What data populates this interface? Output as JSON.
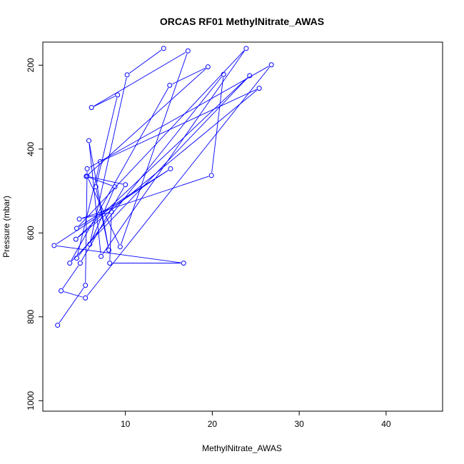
{
  "chart_data": {
    "type": "line",
    "title": "ORCAS RF01 MethylNitrate_AWAS",
    "xlabel": "MethylNitrate_AWAS",
    "ylabel": "Pressure (mbar)",
    "xlim": [
      0.5,
      46.5
    ],
    "ylim": [
      1025,
      145
    ],
    "y_reversed": true,
    "x_ticks": [
      10,
      20,
      30,
      40
    ],
    "y_ticks": [
      200,
      400,
      600,
      800,
      1000
    ],
    "grid": false,
    "legend": "none",
    "series_color": "#0000ff",
    "markers": "open-circle",
    "series": [
      {
        "points": [
          [
            2.2,
            820
          ],
          [
            5.4,
            725
          ],
          [
            5.6,
            447
          ],
          [
            26.8,
            199
          ],
          [
            5.4,
            755
          ],
          [
            2.6,
            738
          ],
          [
            4.8,
            672
          ],
          [
            10.0,
            485
          ],
          [
            5.6,
            465
          ],
          [
            9.4,
            633
          ],
          [
            17.2,
            166
          ],
          [
            6.1,
            301
          ],
          [
            9.1,
            271
          ],
          [
            6.6,
            490
          ],
          [
            8.1,
            641
          ],
          [
            5.8,
            380
          ],
          [
            7.2,
            656
          ],
          [
            23.9,
            160
          ],
          [
            4.4,
            589
          ],
          [
            15.2,
            447
          ],
          [
            1.8,
            630
          ],
          [
            16.7,
            672
          ],
          [
            8.2,
            672
          ],
          [
            8.4,
            550
          ],
          [
            4.7,
            567
          ],
          [
            19.9,
            463
          ],
          [
            21.3,
            222
          ],
          [
            4.4,
            660
          ],
          [
            7.1,
            430
          ],
          [
            25.4,
            255
          ],
          [
            4.3,
            615
          ],
          [
            24.3,
            225
          ],
          [
            3.6,
            672
          ],
          [
            15.1,
            248
          ],
          [
            19.5,
            204
          ],
          [
            5.5,
            465
          ],
          [
            8.8,
            490
          ],
          [
            5.9,
            627
          ],
          [
            10.2,
            223
          ],
          [
            14.4,
            160
          ]
        ]
      }
    ]
  }
}
